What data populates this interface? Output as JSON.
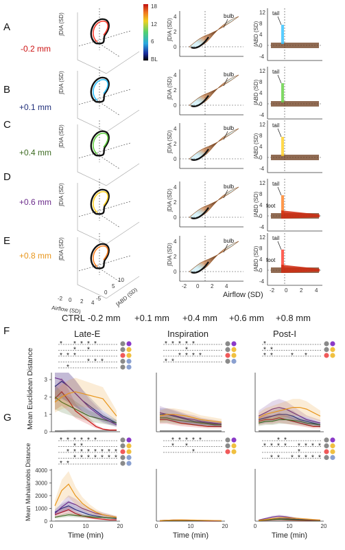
{
  "figure": {
    "panel_letters": [
      "A",
      "B",
      "C",
      "D",
      "E",
      "F",
      "G"
    ],
    "conditions": [
      {
        "label": "-0.2 mm",
        "color": "#cc1111"
      },
      {
        "label": "+0.1 mm",
        "color": "#1f2e7a"
      },
      {
        "label": "+0.4 mm",
        "color": "#3d6b22"
      },
      {
        "label": "+0.6 mm",
        "color": "#6a2a8a"
      },
      {
        "label": "+0.8 mm",
        "color": "#e8951a"
      }
    ],
    "colorbar": {
      "ticks": [
        "18",
        "12",
        "6",
        "BL"
      ]
    },
    "col1": {
      "ylabel": "∫DIA (SD)",
      "xlabel": "Airflow (SD)",
      "zlabel": "∫ABD (SD)",
      "xticks": [
        "-2",
        "0",
        "2",
        "4"
      ],
      "zticks": [
        "-5",
        "0",
        "5",
        "10"
      ]
    },
    "col2": {
      "ylabel": "∫DIA (SD)",
      "yticks": [
        "0",
        "2",
        "4"
      ],
      "xticks": [
        "-2",
        "0",
        "2",
        "4"
      ],
      "xlabel": "Airflow (SD)",
      "annotation": "bulb"
    },
    "col3": {
      "ylabel": "∫ABD (SD)",
      "yticks": [
        "-4",
        "0",
        "4",
        "8",
        "12"
      ],
      "xticks": [
        "-2",
        "0",
        "2",
        "4"
      ],
      "annotation_tail": "tail",
      "annotation_foot": "foot"
    }
  },
  "legend": {
    "items": [
      {
        "label": "CTRL",
        "color": "#8a8a8a"
      },
      {
        "label": "-0.2 mm",
        "color": "#cc1111"
      },
      {
        "label": "+0.1 mm",
        "color": "#1f2e7a"
      },
      {
        "label": "+0.4 mm",
        "color": "#3d6b22"
      },
      {
        "label": "+0.6 mm",
        "color": "#6a2a8a"
      },
      {
        "label": "+0.8 mm",
        "color": "#e8951a"
      }
    ]
  },
  "stats": {
    "columns": [
      "Late-E",
      "Inspiration",
      "Post-I"
    ],
    "f_ylabel": "Mean Euclidean Distance",
    "g_ylabel": "Mean Mahalanobis Distance",
    "xlabel": "Time (min)",
    "xticks": [
      "0",
      "10",
      "20"
    ],
    "f_yticks": [
      "0",
      "1",
      "2",
      "3"
    ],
    "g_yticks": [
      "0",
      "1000",
      "2000",
      "3000",
      "4000"
    ]
  },
  "chart_data": [
    {
      "type": "line",
      "title": "Late-E",
      "xlabel": "Time (min)",
      "ylabel": "Mean Euclidean Distance",
      "xlim": [
        0,
        20
      ],
      "ylim": [
        0,
        3.4
      ],
      "x": [
        1,
        3,
        5,
        7,
        9,
        11,
        13,
        15,
        17,
        19
      ],
      "series": [
        {
          "name": "CTRL",
          "values": [
            0.05,
            0.05,
            0.06,
            0.06,
            0.06,
            0.06,
            0.06,
            0.06,
            0.07,
            0.07
          ]
        },
        {
          "name": "-0.2 mm",
          "values": [
            1.9,
            2.3,
            1.8,
            1.2,
            0.9,
            0.6,
            0.3,
            0.15,
            0.1,
            0.1
          ]
        },
        {
          "name": "+0.1 mm",
          "values": [
            2.6,
            2.9,
            2.6,
            2.2,
            1.8,
            1.5,
            1.2,
            0.9,
            0.7,
            0.5
          ]
        },
        {
          "name": "+0.4 mm",
          "values": [
            2.0,
            1.7,
            1.5,
            1.3,
            1.1,
            0.9,
            0.8,
            0.7,
            0.6,
            0.5
          ]
        },
        {
          "name": "+0.6 mm",
          "values": [
            3.1,
            3.0,
            2.6,
            2.2,
            1.8,
            1.4,
            1.1,
            0.8,
            0.6,
            0.4
          ]
        },
        {
          "name": "+0.8 mm",
          "values": [
            1.7,
            2.0,
            2.2,
            2.3,
            2.2,
            2.1,
            2.0,
            1.9,
            1.4,
            0.9
          ]
        }
      ]
    },
    {
      "type": "line",
      "title": "Inspiration",
      "xlabel": "Time (min)",
      "ylabel": "Mean Euclidean Distance",
      "xlim": [
        0,
        20
      ],
      "ylim": [
        0,
        3.4
      ],
      "x": [
        1,
        3,
        5,
        7,
        9,
        11,
        13,
        15,
        17,
        19
      ],
      "series": [
        {
          "name": "CTRL",
          "values": [
            0.05,
            0.05,
            0.05,
            0.05,
            0.05,
            0.05,
            0.05,
            0.05,
            0.05,
            0.05
          ]
        },
        {
          "name": "-0.2 mm",
          "values": [
            0.7,
            0.7,
            0.6,
            0.5,
            0.45,
            0.4,
            0.35,
            0.3,
            0.3,
            0.3
          ]
        },
        {
          "name": "+0.1 mm",
          "values": [
            1.0,
            1.0,
            0.9,
            0.8,
            0.7,
            0.6,
            0.55,
            0.5,
            0.45,
            0.4
          ]
        },
        {
          "name": "+0.4 mm",
          "values": [
            0.8,
            0.8,
            0.7,
            0.65,
            0.6,
            0.55,
            0.5,
            0.45,
            0.4,
            0.4
          ]
        },
        {
          "name": "+0.6 mm",
          "values": [
            1.1,
            1.0,
            0.95,
            0.85,
            0.75,
            0.7,
            0.6,
            0.55,
            0.5,
            0.45
          ]
        },
        {
          "name": "+0.8 mm",
          "values": [
            0.9,
            1.0,
            1.0,
            0.95,
            0.9,
            0.8,
            0.7,
            0.65,
            0.6,
            0.55
          ]
        }
      ]
    },
    {
      "type": "line",
      "title": "Post-I",
      "xlabel": "Time (min)",
      "ylabel": "Mean Euclidean Distance",
      "xlim": [
        0,
        20
      ],
      "ylim": [
        0,
        3.4
      ],
      "x": [
        1,
        3,
        5,
        7,
        9,
        11,
        13,
        15,
        17,
        19
      ],
      "series": [
        {
          "name": "CTRL",
          "values": [
            0.05,
            0.05,
            0.05,
            0.05,
            0.05,
            0.05,
            0.05,
            0.05,
            0.05,
            0.05
          ]
        },
        {
          "name": "-0.2 mm",
          "values": [
            0.6,
            0.7,
            0.7,
            0.8,
            0.7,
            0.6,
            0.5,
            0.4,
            0.3,
            0.3
          ]
        },
        {
          "name": "+0.1 mm",
          "values": [
            0.7,
            0.8,
            0.9,
            1.0,
            1.0,
            0.9,
            0.7,
            0.6,
            0.5,
            0.4
          ]
        },
        {
          "name": "+0.4 mm",
          "values": [
            0.5,
            0.6,
            0.6,
            0.7,
            0.7,
            0.65,
            0.6,
            0.5,
            0.45,
            0.4
          ]
        },
        {
          "name": "+0.6 mm",
          "values": [
            0.9,
            1.1,
            1.3,
            1.4,
            1.3,
            1.1,
            0.9,
            0.7,
            0.6,
            0.5
          ]
        },
        {
          "name": "+0.8 mm",
          "values": [
            0.8,
            1.0,
            1.1,
            1.2,
            1.3,
            1.4,
            1.4,
            1.3,
            1.1,
            0.9
          ]
        }
      ]
    },
    {
      "type": "line",
      "title": "Late-E",
      "xlabel": "Time (min)",
      "ylabel": "Mean Mahalanobis Distance",
      "xlim": [
        0,
        20
      ],
      "ylim": [
        0,
        4100
      ],
      "x": [
        1,
        3,
        5,
        7,
        9,
        11,
        13,
        15,
        17,
        19
      ],
      "series": [
        {
          "name": "CTRL",
          "values": [
            10,
            10,
            10,
            10,
            10,
            10,
            10,
            10,
            10,
            10
          ]
        },
        {
          "name": "-0.2 mm",
          "values": [
            500,
            700,
            900,
            600,
            400,
            300,
            200,
            150,
            100,
            100
          ]
        },
        {
          "name": "+0.1 mm",
          "values": [
            700,
            1000,
            1200,
            900,
            700,
            500,
            400,
            300,
            250,
            200
          ]
        },
        {
          "name": "+0.4 mm",
          "values": [
            300,
            400,
            500,
            450,
            400,
            350,
            300,
            300,
            250,
            250
          ]
        },
        {
          "name": "+0.6 mm",
          "values": [
            600,
            1100,
            1500,
            1300,
            1000,
            800,
            600,
            500,
            400,
            300
          ]
        },
        {
          "name": "+0.8 mm",
          "values": [
            1200,
            2400,
            2900,
            2000,
            1400,
            1000,
            700,
            500,
            400,
            300
          ]
        }
      ]
    },
    {
      "type": "line",
      "title": "Inspiration",
      "xlabel": "Time (min)",
      "ylabel": "Mean Mahalanobis Distance",
      "xlim": [
        0,
        20
      ],
      "ylim": [
        0,
        4100
      ],
      "x": [
        1,
        3,
        5,
        7,
        9,
        11,
        13,
        15,
        17,
        19
      ],
      "series": [
        {
          "name": "CTRL",
          "values": [
            5,
            5,
            5,
            5,
            5,
            5,
            5,
            5,
            5,
            5
          ]
        },
        {
          "name": "-0.2 mm",
          "values": [
            20,
            30,
            40,
            40,
            35,
            30,
            25,
            20,
            15,
            15
          ]
        },
        {
          "name": "+0.1 mm",
          "values": [
            40,
            60,
            70,
            70,
            60,
            50,
            40,
            30,
            25,
            20
          ]
        },
        {
          "name": "+0.4 mm",
          "values": [
            30,
            40,
            50,
            50,
            45,
            40,
            35,
            30,
            25,
            20
          ]
        },
        {
          "name": "+0.6 mm",
          "values": [
            50,
            70,
            90,
            90,
            80,
            70,
            55,
            45,
            35,
            30
          ]
        },
        {
          "name": "+0.8 mm",
          "values": [
            40,
            70,
            90,
            100,
            90,
            80,
            70,
            60,
            50,
            40
          ]
        }
      ]
    },
    {
      "type": "line",
      "title": "Post-I",
      "xlabel": "Time (min)",
      "ylabel": "Mean Mahalanobis Distance",
      "xlim": [
        0,
        20
      ],
      "ylim": [
        0,
        4100
      ],
      "x": [
        1,
        3,
        5,
        7,
        9,
        11,
        13,
        15,
        17,
        19
      ],
      "series": [
        {
          "name": "CTRL",
          "values": [
            5,
            5,
            5,
            5,
            5,
            5,
            5,
            5,
            5,
            5
          ]
        },
        {
          "name": "-0.2 mm",
          "values": [
            30,
            60,
            100,
            120,
            100,
            80,
            60,
            40,
            30,
            30
          ]
        },
        {
          "name": "+0.1 mm",
          "values": [
            50,
            100,
            180,
            220,
            200,
            160,
            120,
            90,
            70,
            50
          ]
        },
        {
          "name": "+0.4 mm",
          "values": [
            40,
            80,
            120,
            140,
            130,
            110,
            90,
            70,
            50,
            40
          ]
        },
        {
          "name": "+0.6 mm",
          "values": [
            80,
            200,
            320,
            380,
            330,
            250,
            180,
            130,
            90,
            70
          ]
        },
        {
          "name": "+0.8 mm",
          "values": [
            60,
            120,
            200,
            260,
            260,
            230,
            200,
            160,
            120,
            90
          ]
        }
      ]
    }
  ]
}
